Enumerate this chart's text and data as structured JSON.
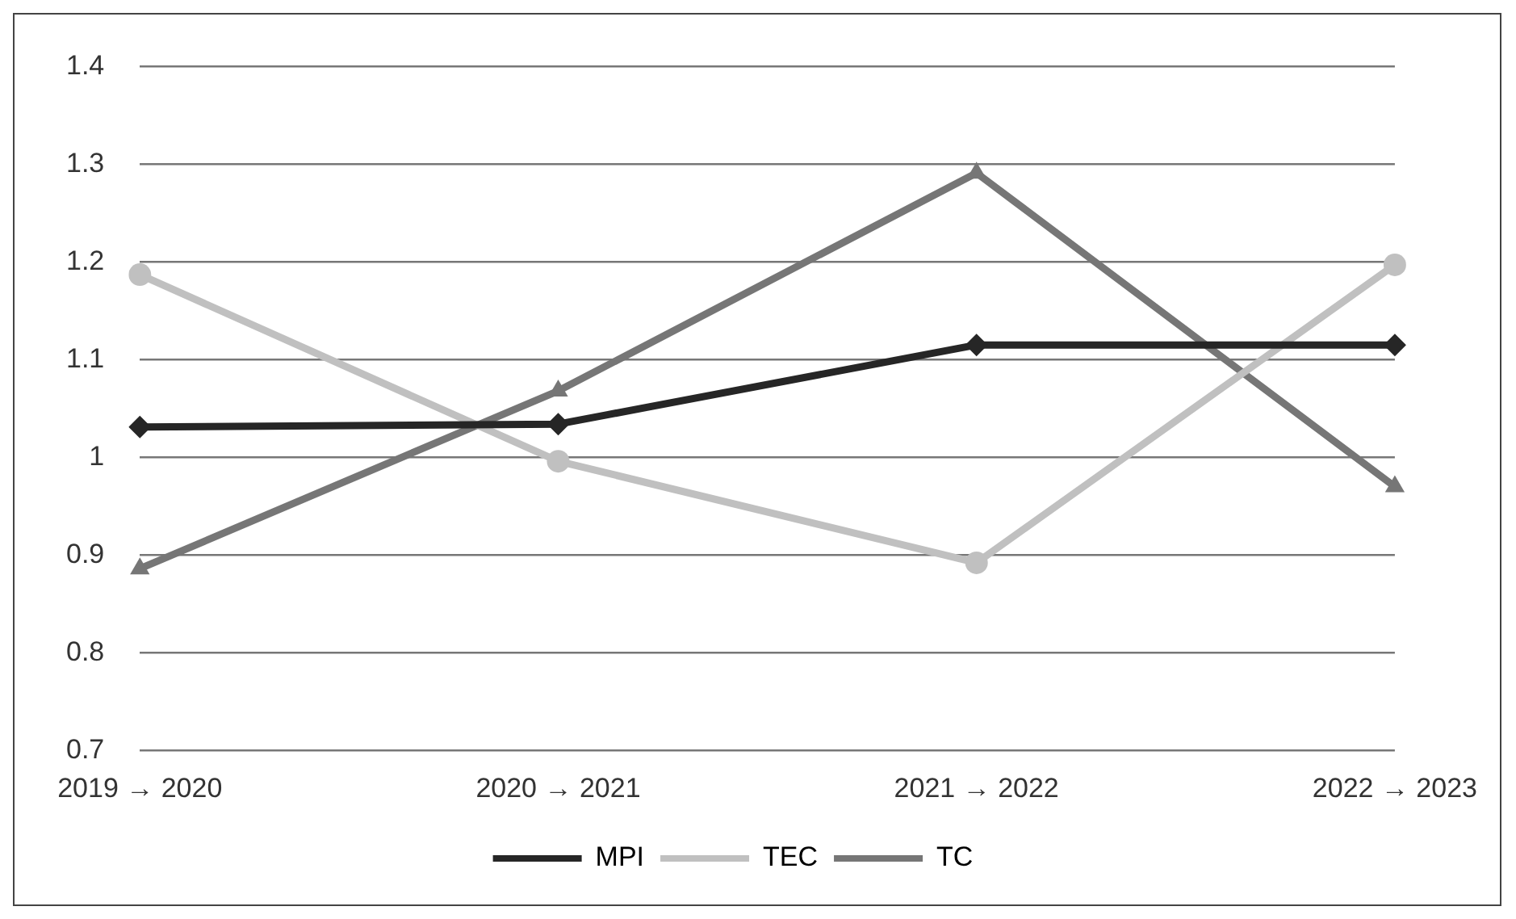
{
  "chart_data": {
    "type": "line",
    "categories": [
      "2019 → 2020",
      "2020 → 2021",
      "2021 → 2022",
      "2022 → 2023"
    ],
    "series": [
      {
        "name": "MPI",
        "color": "#262626",
        "marker": "diamond",
        "values": [
          1.031,
          1.034,
          1.115,
          1.115
        ]
      },
      {
        "name": "TEC",
        "color": "#c0c0c0",
        "marker": "circle",
        "values": [
          1.187,
          0.996,
          0.892,
          1.197
        ]
      },
      {
        "name": "TC",
        "color": "#767676",
        "marker": "triangle",
        "values": [
          0.886,
          1.068,
          1.291,
          0.97
        ]
      }
    ],
    "ylim": [
      0.7,
      1.4
    ],
    "yticks": [
      0.7,
      0.8,
      0.9,
      1,
      1.1,
      1.2,
      1.3,
      1.4
    ],
    "grid": "y",
    "legend": "bottom"
  }
}
